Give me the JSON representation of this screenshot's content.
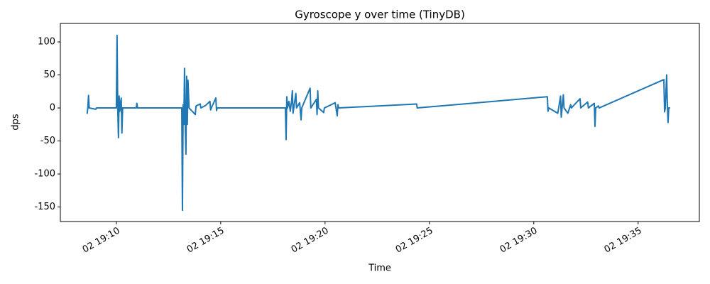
{
  "chart_data": {
    "type": "line",
    "title": "Gyroscope y over time (TinyDB)",
    "x_label": "Time",
    "y_label": "dps",
    "color": "#1f77b4",
    "x": [
      "02 19:08:36",
      "02 19:08:38",
      "02 19:08:40",
      "02 19:08:42",
      "02 19:09:01",
      "02 19:09:03",
      "02 19:10:00",
      "02 19:10:02",
      "02 19:10:04",
      "02 19:10:06",
      "02 19:10:08",
      "02 19:10:10",
      "02 19:10:14",
      "02 19:10:16",
      "02 19:10:18",
      "02 19:10:57",
      "02 19:10:59",
      "02 19:11:01",
      "02 19:13:08",
      "02 19:13:10",
      "02 19:13:12",
      "02 19:13:14",
      "02 19:13:16",
      "02 19:13:18",
      "02 19:13:20",
      "02 19:13:22",
      "02 19:13:24",
      "02 19:13:26",
      "02 19:13:29",
      "02 19:13:47",
      "02 19:13:49",
      "02 19:14:01",
      "02 19:14:03",
      "02 19:14:17",
      "02 19:14:29",
      "02 19:14:31",
      "02 19:14:33",
      "02 19:14:46",
      "02 19:14:48",
      "02 19:14:50",
      "02 19:18:06",
      "02 19:18:08",
      "02 19:18:10",
      "02 19:18:12",
      "02 19:18:16",
      "02 19:18:20",
      "02 19:18:24",
      "02 19:18:26",
      "02 19:18:28",
      "02 19:18:36",
      "02 19:18:38",
      "02 19:18:47",
      "02 19:18:51",
      "02 19:18:53",
      "02 19:19:17",
      "02 19:19:19",
      "02 19:19:35",
      "02 19:19:37",
      "02 19:19:39",
      "02 19:19:41",
      "02 19:19:56",
      "02 19:19:58",
      "02 19:20:18",
      "02 19:20:29",
      "02 19:20:35",
      "02 19:20:37",
      "02 19:20:39",
      "02 19:24:23",
      "02 19:24:25",
      "02 19:30:39",
      "02 19:30:41",
      "02 19:30:43",
      "02 19:31:09",
      "02 19:31:17",
      "02 19:31:19",
      "02 19:31:25",
      "02 19:31:27",
      "02 19:31:38",
      "02 19:31:46",
      "02 19:31:48",
      "02 19:32:13",
      "02 19:32:15",
      "02 19:32:35",
      "02 19:32:37",
      "02 19:32:54",
      "02 19:32:56",
      "02 19:32:58",
      "02 19:33:06",
      "02 19:33:08",
      "02 19:36:14",
      "02 19:36:16",
      "02 19:36:18",
      "02 19:36:22",
      "02 19:36:24",
      "02 19:36:26",
      "02 19:36:28",
      "02 19:36:32"
    ],
    "values": [
      -9,
      0,
      19,
      0,
      -2,
      0,
      0,
      110,
      0,
      -45,
      18,
      -5,
      15,
      -38,
      0,
      0,
      7,
      0,
      0,
      -155,
      5,
      -25,
      60,
      -25,
      -70,
      48,
      -25,
      42,
      0,
      -10,
      3,
      6,
      0,
      4,
      10,
      -3,
      0,
      15,
      -4,
      0,
      0,
      -48,
      17,
      0,
      10,
      -5,
      12,
      26,
      -8,
      22,
      0,
      8,
      -18,
      0,
      30,
      0,
      13,
      -10,
      26,
      0,
      -7,
      0,
      5,
      8,
      -12,
      5,
      0,
      6,
      0,
      17,
      -5,
      0,
      -8,
      18,
      -14,
      20,
      0,
      -8,
      5,
      0,
      14,
      0,
      9,
      0,
      7,
      -28,
      0,
      3,
      0,
      43,
      -6,
      0,
      50,
      5,
      -22,
      0,
      0
    ],
    "xlim": [
      "02 19:07:19",
      "02 19:37:56"
    ],
    "xticks": [
      "02 19:10",
      "02 19:15",
      "02 19:20",
      "02 19:25",
      "02 19:30",
      "02 19:35"
    ],
    "ylim": [
      -172,
      128
    ],
    "yticks": [
      -150,
      -100,
      -50,
      0,
      50,
      100
    ],
    "grid": false
  }
}
